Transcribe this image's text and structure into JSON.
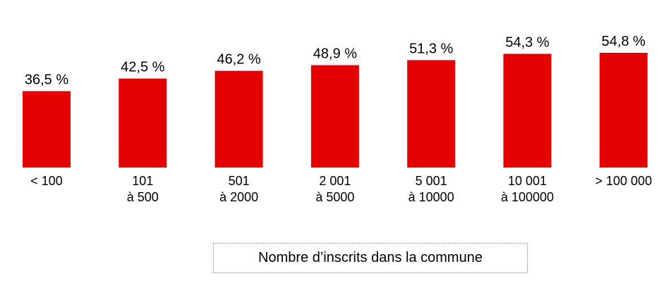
{
  "chart_data": {
    "type": "bar",
    "categories": [
      "< 100",
      "101\nà 500",
      "501\nà 2000",
      "2 001\nà 5000",
      "5 001\nà 10000",
      "10 001\nà 100000",
      "> 100 000"
    ],
    "values": [
      36.5,
      42.5,
      46.2,
      48.9,
      51.3,
      54.3,
      54.8
    ],
    "value_labels": [
      "36,5 %",
      "42,5 %",
      "46,2 %",
      "48,9 %",
      "51,3 %",
      "54,3 %",
      "54,8 %"
    ],
    "color": "#e50000",
    "x_label": "Nombre d’inscrits dans la commune"
  }
}
